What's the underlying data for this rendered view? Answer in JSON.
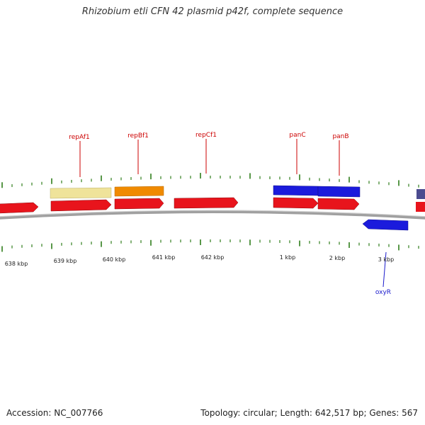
{
  "title": "Rhizobium etli CFN 42 plasmid p42f, complete sequence",
  "footer": {
    "accession": "Accession: NC_007766",
    "summary": "Topology: circular; Length: 642,517 bp; Genes: 567"
  },
  "colors": {
    "backbone": "#7a7a7a",
    "tick": "#2e7d1a",
    "forward_feature": "#e8141c",
    "reverse_feature": "#1520d8",
    "label_red": "#cc0000",
    "label_blue": "#1a1acc",
    "pale_yellow": "#efe39a",
    "orange": "#f08a00",
    "blue": "#1b1bdc",
    "slate": "#4b4b8f"
  },
  "tick_labels": [
    "638 kbp",
    "639 kbp",
    "640 kbp",
    "641 kbp",
    "642 kbp",
    "1 kbp",
    "2 kbp",
    "3 kbp"
  ],
  "genes": [
    {
      "name": "repAf1",
      "color": "label_red"
    },
    {
      "name": "repBf1",
      "color": "label_red"
    },
    {
      "name": "repCf1",
      "color": "label_red"
    },
    {
      "name": "panC",
      "color": "label_red"
    },
    {
      "name": "panB",
      "color": "label_red"
    },
    {
      "name": "oxyR",
      "color": "label_blue"
    }
  ]
}
